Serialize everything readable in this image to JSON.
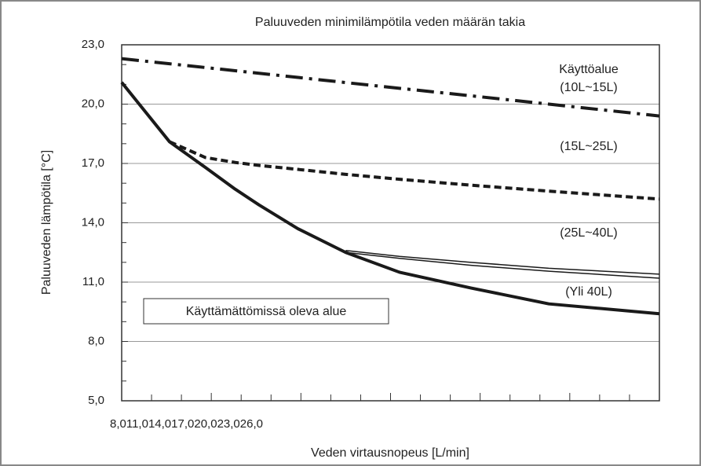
{
  "chart_data": {
    "type": "line",
    "title": "Paluuveden minimilämpötila veden määrän takia",
    "x_label": "Veden virtausnopeus [L/min]",
    "y_label": "Paluuveden lämpötila [°C]",
    "x": [
      8,
      9.6,
      10.8,
      11.8,
      12.6,
      13.9,
      15.5,
      17.3,
      19.7,
      22.3,
      26
    ],
    "xlim": [
      8,
      26
    ],
    "xticks": [
      {
        "value": 8,
        "label": "8,0"
      },
      {
        "value": 11,
        "label": "11,0"
      },
      {
        "value": 14,
        "label": "14,0"
      },
      {
        "value": 17,
        "label": "17,0"
      },
      {
        "value": 20,
        "label": "20,0"
      },
      {
        "value": 23,
        "label": "23,0"
      },
      {
        "value": 26,
        "label": "26,0"
      }
    ],
    "ylim": [
      5,
      23
    ],
    "yticks": [
      {
        "value": 5,
        "label": "5,0"
      },
      {
        "value": 8,
        "label": "8,0"
      },
      {
        "value": 11,
        "label": "11,0"
      },
      {
        "value": 14,
        "label": "14,0"
      },
      {
        "value": 17,
        "label": "17,0"
      },
      {
        "value": 20,
        "label": "20,0"
      },
      {
        "value": 23,
        "label": "23,0"
      }
    ],
    "grid": true,
    "series": [
      {
        "name": "(10L~15L)",
        "color": "#1a1a1a",
        "style": "dash-dot",
        "values": [
          22.3,
          22.04,
          21.85,
          21.69,
          21.56,
          21.35,
          21.09,
          20.8,
          20.42,
          20.0,
          19.4
        ]
      },
      {
        "name": "(15L~25L)",
        "color": "#1a1a1a",
        "style": "dash",
        "values": [
          null,
          18.1,
          17.3,
          17.05,
          16.9,
          16.7,
          16.45,
          16.2,
          15.9,
          15.6,
          15.2
        ]
      },
      {
        "name": "(25L~40L)",
        "color": "#1a1a1a",
        "style": "thin",
        "values": [
          null,
          null,
          null,
          null,
          null,
          null,
          12.6,
          12.3,
          12.0,
          11.7,
          11.4
        ]
      },
      {
        "color": "#1a1a1a",
        "style": "thin",
        "values": [
          null,
          null,
          null,
          null,
          null,
          null,
          12.5,
          12.2,
          11.85,
          11.55,
          11.2
        ]
      },
      {
        "name": "(Yli 40L)",
        "color": "#1a1a1a",
        "style": "solid",
        "values": [
          21.1,
          18.1,
          16.8,
          15.7,
          14.9,
          13.7,
          12.5,
          11.5,
          10.7,
          9.9,
          9.4
        ]
      }
    ],
    "annotations": [
      "Käyttöalue",
      "Käyttämättömissä oleva alue"
    ]
  }
}
